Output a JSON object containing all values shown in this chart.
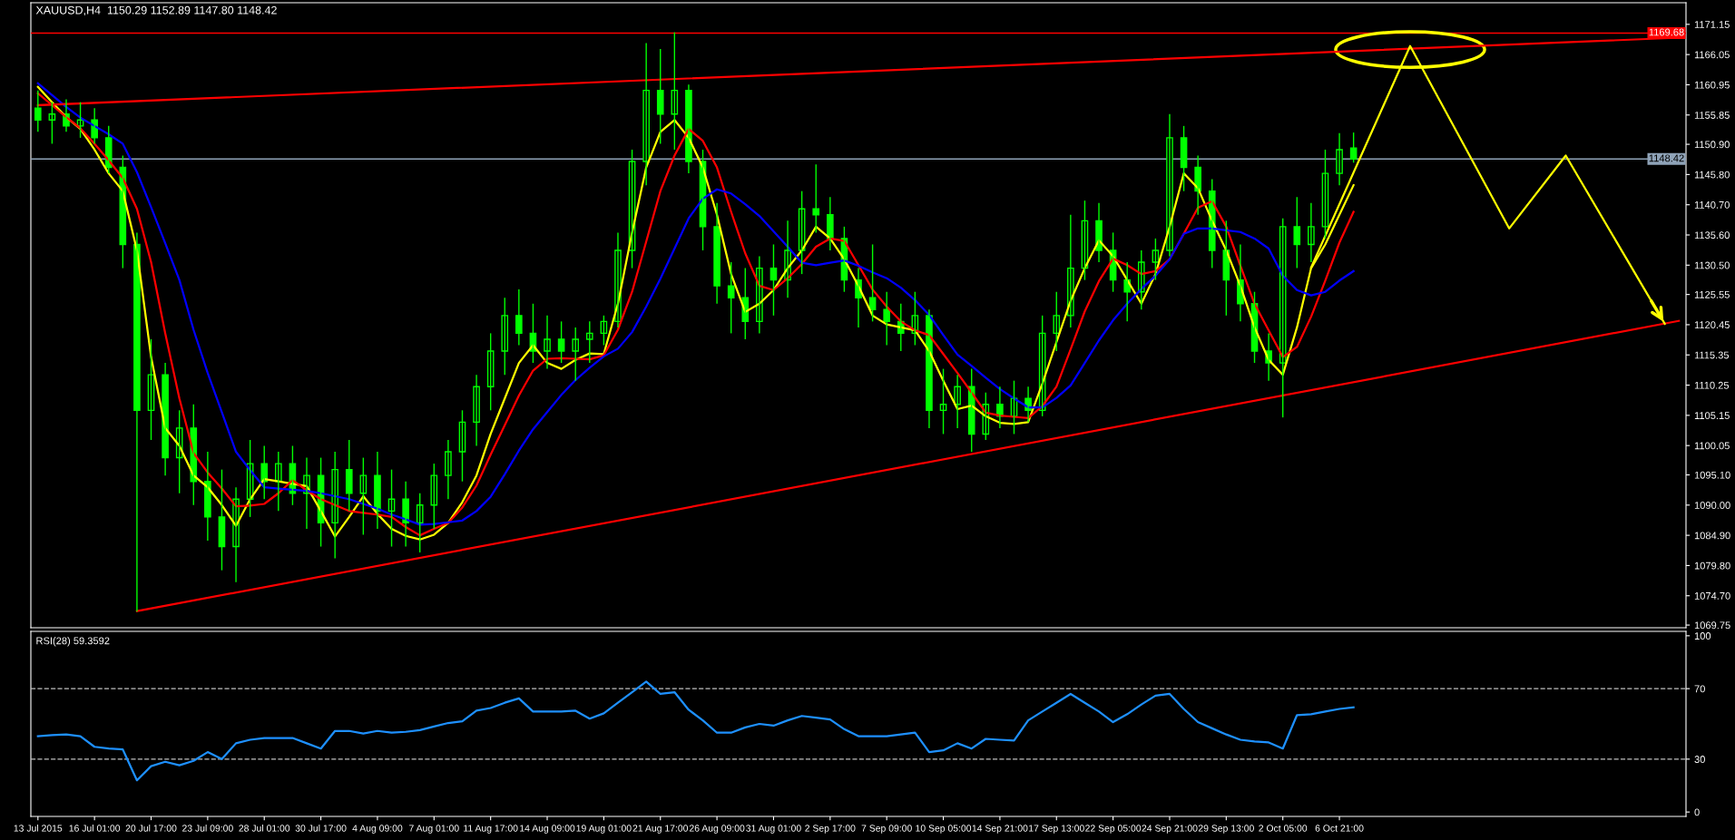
{
  "chart_data": [
    {
      "type": "candlestick",
      "title": "XAUUSD,H4  1150.29 1152.89 1147.80 1148.42",
      "color": "#00ff00",
      "categories": [
        null,
        null,
        null,
        null,
        null,
        null,
        null,
        null,
        null,
        null,
        null,
        null,
        null,
        null,
        null,
        null,
        null,
        null,
        null,
        null,
        null,
        null,
        null,
        null,
        null,
        null,
        null,
        null,
        null,
        null,
        null,
        null,
        null,
        null,
        null,
        null,
        null,
        null,
        null,
        null,
        null,
        null,
        null,
        null,
        null,
        null,
        null,
        null,
        null,
        null,
        null,
        null,
        null,
        null,
        null,
        null,
        null,
        null,
        null,
        null,
        null,
        null,
        null,
        null,
        null,
        null,
        null,
        null,
        null,
        null,
        null,
        null,
        null,
        null,
        null,
        null,
        null,
        null,
        null,
        null,
        null,
        null,
        null,
        null,
        null,
        null,
        null,
        null,
        null,
        null,
        null,
        null,
        null,
        null,
        null,
        null,
        null,
        null,
        null,
        null,
        null,
        null,
        null,
        null,
        null,
        null,
        null,
        null,
        null,
        null,
        null,
        null,
        null,
        null,
        null,
        null,
        null
      ],
      "ohlc": [
        [
          1157,
          1160,
          1153,
          1155
        ],
        [
          1155,
          1158,
          1151,
          1156
        ],
        [
          1156,
          1158.5,
          1153,
          1154
        ],
        [
          1154,
          1158,
          1152,
          1155
        ],
        [
          1155,
          1157,
          1151,
          1152
        ],
        [
          1152,
          1154,
          1146,
          1147
        ],
        [
          1147,
          1149,
          1130,
          1134
        ],
        [
          1134,
          1136,
          1072,
          1106
        ],
        [
          1106,
          1118,
          1101,
          1112
        ],
        [
          1112,
          1114,
          1095,
          1098
        ],
        [
          1098,
          1106,
          1092,
          1103
        ],
        [
          1103,
          1107,
          1090,
          1094
        ],
        [
          1094,
          1099,
          1084,
          1088
        ],
        [
          1088,
          1096,
          1079,
          1083
        ],
        [
          1083,
          1093,
          1077,
          1091
        ],
        [
          1091,
          1101,
          1088,
          1097
        ],
        [
          1097,
          1100,
          1091,
          1094
        ],
        [
          1094,
          1099,
          1089,
          1097
        ],
        [
          1097,
          1100,
          1090,
          1092
        ],
        [
          1092,
          1098,
          1086,
          1095
        ],
        [
          1095,
          1098,
          1083,
          1087
        ],
        [
          1087,
          1099,
          1081,
          1096
        ],
        [
          1096,
          1101,
          1089,
          1092
        ],
        [
          1092,
          1098,
          1085,
          1095
        ],
        [
          1095,
          1099,
          1086,
          1089
        ],
        [
          1089,
          1096,
          1083,
          1091
        ],
        [
          1091,
          1094,
          1083,
          1087
        ],
        [
          1087,
          1092,
          1082,
          1090
        ],
        [
          1090,
          1097,
          1086,
          1095
        ],
        [
          1095,
          1101,
          1091,
          1099
        ],
        [
          1099,
          1106,
          1094,
          1104
        ],
        [
          1104,
          1112,
          1100,
          1110
        ],
        [
          1110,
          1119,
          1106,
          1116
        ],
        [
          1116,
          1125,
          1112,
          1122
        ],
        [
          1122,
          1126.4,
          1117,
          1119
        ],
        [
          1119,
          1124,
          1114,
          1116
        ],
        [
          1116,
          1122,
          1113,
          1118
        ],
        [
          1118,
          1121,
          1114,
          1116
        ],
        [
          1116,
          1120,
          1111,
          1118
        ],
        [
          1118,
          1121,
          1114,
          1119
        ],
        [
          1119,
          1122,
          1117,
          1121
        ],
        [
          1121,
          1136,
          1120,
          1133
        ],
        [
          1133,
          1150,
          1130,
          1148
        ],
        [
          1148,
          1168,
          1144,
          1160
        ],
        [
          1160,
          1167,
          1151,
          1156
        ],
        [
          1156,
          1169.8,
          1150,
          1160
        ],
        [
          1160,
          1161,
          1146,
          1148
        ],
        [
          1148,
          1150,
          1133,
          1137
        ],
        [
          1137,
          1141,
          1124,
          1127
        ],
        [
          1127,
          1131,
          1119,
          1125
        ],
        [
          1125,
          1130,
          1118,
          1121
        ],
        [
          1121,
          1132,
          1119,
          1130
        ],
        [
          1130,
          1134,
          1122,
          1128
        ],
        [
          1128,
          1138,
          1125,
          1133
        ],
        [
          1133,
          1143,
          1129,
          1140
        ],
        [
          1140,
          1147.5,
          1136,
          1139
        ],
        [
          1139,
          1142,
          1133,
          1135
        ],
        [
          1135,
          1137,
          1126,
          1128
        ],
        [
          1128,
          1130,
          1120,
          1125
        ],
        [
          1125,
          1134,
          1121,
          1123
        ],
        [
          1123,
          1126,
          1117,
          1121
        ],
        [
          1121,
          1124,
          1116,
          1119
        ],
        [
          1119,
          1126,
          1117,
          1122
        ],
        [
          1122,
          1123,
          1103,
          1106
        ],
        [
          1106,
          1113,
          1102,
          1107
        ],
        [
          1107,
          1112,
          1103,
          1110
        ],
        [
          1110,
          1113,
          1099,
          1102
        ],
        [
          1102,
          1109,
          1101,
          1107
        ],
        [
          1107,
          1110,
          1103,
          1105
        ],
        [
          1105,
          1111,
          1102,
          1108
        ],
        [
          1108,
          1110,
          1104,
          1106
        ],
        [
          1106,
          1122,
          1105,
          1119
        ],
        [
          1119,
          1126,
          1116,
          1122
        ],
        [
          1122,
          1139,
          1120,
          1130
        ],
        [
          1130,
          1141.4,
          1128,
          1138
        ],
        [
          1138,
          1141,
          1131,
          1133
        ],
        [
          1133,
          1136,
          1126,
          1128
        ],
        [
          1128,
          1131,
          1121,
          1126
        ],
        [
          1126,
          1133,
          1123,
          1131
        ],
        [
          1131,
          1135,
          1128,
          1133
        ],
        [
          1133,
          1156,
          1132,
          1152
        ],
        [
          1152,
          1154,
          1143,
          1147
        ],
        [
          1147,
          1149,
          1139,
          1143
        ],
        [
          1143,
          1145,
          1130,
          1133
        ],
        [
          1133,
          1138,
          1122,
          1128
        ],
        [
          1128,
          1134,
          1121,
          1124
        ],
        [
          1124,
          1126,
          1114,
          1116
        ],
        [
          1116,
          1119,
          1111,
          1114
        ],
        [
          1114,
          1138.4,
          1104.8,
          1137
        ],
        [
          1137,
          1142,
          1130,
          1134
        ],
        [
          1134,
          1141,
          1131,
          1137
        ],
        [
          1137,
          1150,
          1135,
          1146
        ],
        [
          1146,
          1152.8,
          1144,
          1150
        ],
        [
          1150.29,
          1152.89,
          1147.8,
          1148.42
        ],
        null,
        null,
        null,
        null,
        null,
        null,
        null,
        null,
        null,
        null,
        null,
        null,
        null,
        null,
        null,
        null,
        null,
        null,
        null,
        null,
        null,
        null,
        null
      ],
      "series": [
        {
          "type": "line",
          "color": "#ffff00",
          "values": [
            1160.6,
            1158,
            1155.5,
            1153.5,
            1150,
            1146,
            1143,
            1133,
            1115,
            1103,
            1100,
            1095,
            1093,
            1090,
            1086.5,
            1091,
            1094.4,
            1094,
            1093.6,
            1093.2,
            1089,
            1084.7,
            1088,
            1091.5,
            1088.5,
            1086,
            1084.8,
            1084.2,
            1085,
            1087,
            1090.5,
            1095,
            1102,
            1108,
            1114,
            1117,
            1114,
            1113,
            1114.5,
            1115.6,
            1115.5,
            1124,
            1136,
            1147,
            1153,
            1155,
            1152,
            1147,
            1139,
            1129,
            1122.6,
            1124,
            1126.3,
            1130,
            1133,
            1137,
            1135,
            1131.5,
            1127,
            1122,
            1120.5,
            1120,
            1119.5,
            1116,
            1111,
            1106.2,
            1106.8,
            1105,
            1103.9,
            1103.7,
            1104,
            1110.5,
            1117.5,
            1124.5,
            1130,
            1134.7,
            1132,
            1128,
            1124,
            1129,
            1137,
            1146,
            1143.5,
            1138,
            1133,
            1127,
            1120,
            1114.5,
            1112,
            1120,
            1130,
            1134,
            1139,
            1144,
            null,
            null,
            null,
            null,
            null,
            null,
            null,
            null,
            null,
            null,
            null,
            null,
            null,
            null,
            null,
            null,
            null,
            null,
            null,
            null,
            null,
            null,
            null
          ]
        },
        {
          "type": "line",
          "color": "#ff0000",
          "values": [
            1159.5,
            1157.5,
            1155.5,
            1153.6,
            1151,
            1148.2,
            1145.2,
            1140,
            1131,
            1119,
            1108,
            1098.8,
            1095.5,
            1092.8,
            1089.8,
            1089.9,
            1090.2,
            1092,
            1094.2,
            1092.5,
            1091,
            1090,
            1089,
            1088.7,
            1088.4,
            1088,
            1086.3,
            1084.9,
            1086,
            1087,
            1089.6,
            1093.3,
            1098.5,
            1103.5,
            1108.5,
            1112.7,
            1114.7,
            1114.8,
            1114.7,
            1114.6,
            1115.3,
            1119.6,
            1126,
            1134.5,
            1143,
            1149,
            1153.5,
            1151.5,
            1147,
            1139.5,
            1132.5,
            1127,
            1126.3,
            1128.3,
            1130.7,
            1133.6,
            1135,
            1134.6,
            1130.5,
            1126.4,
            1123.5,
            1121,
            1119.5,
            1118.7,
            1115.5,
            1112.3,
            1109,
            1105.6,
            1105.1,
            1104.9,
            1104.7,
            1106.7,
            1110,
            1116.3,
            1122.7,
            1127.8,
            1131.6,
            1130.5,
            1129,
            1129.5,
            1131.5,
            1135.8,
            1140.2,
            1141.3,
            1137,
            1130.4,
            1124,
            1119.5,
            1115,
            1116.7,
            1121.8,
            1127.9,
            1134.3,
            1139.5,
            null,
            null,
            null,
            null,
            null,
            null,
            null,
            null,
            null,
            null,
            null,
            null,
            null,
            null,
            null,
            null,
            null,
            null,
            null,
            null,
            null,
            null,
            null
          ]
        },
        {
          "type": "line",
          "color": "#0000ff",
          "values": [
            1161.2,
            1159.2,
            1157.2,
            1155.4,
            1154,
            1152.6,
            1151,
            1146.2,
            1140.3,
            1134.2,
            1128,
            1119.6,
            1112.3,
            1105.7,
            1099,
            1095.9,
            1093,
            1092.8,
            1092.6,
            1092.4,
            1092,
            1091.5,
            1091,
            1090.2,
            1089.4,
            1088.4,
            1087.6,
            1086.7,
            1086.8,
            1087.1,
            1087.4,
            1089,
            1091.4,
            1095.2,
            1099.2,
            1102.8,
            1105.7,
            1108.6,
            1111.1,
            1113.2,
            1115.1,
            1116.4,
            1119.2,
            1123.5,
            1128.2,
            1133.3,
            1138.4,
            1141.7,
            1143.3,
            1142.6,
            1140.8,
            1138.8,
            1136.2,
            1133.6,
            1130.9,
            1130.5,
            1130.9,
            1131.3,
            1130.4,
            1129.3,
            1128.3,
            1126.7,
            1124.6,
            1122.1,
            1118.7,
            1115.4,
            1113.5,
            1111.5,
            1109.6,
            1108,
            1106.5,
            1106.5,
            1108.1,
            1110.2,
            1114,
            1117.8,
            1121.2,
            1124,
            1126.5,
            1128.7,
            1131.5,
            1135.8,
            1136.7,
            1136.7,
            1136.4,
            1136.1,
            1135,
            1133.3,
            1128.7,
            1126.3,
            1125.4,
            1126,
            1127.9,
            1129.5,
            null,
            null,
            null,
            null,
            null,
            null,
            null,
            null,
            null,
            null,
            null,
            null,
            null,
            null,
            null,
            null,
            null,
            null,
            null,
            null,
            null,
            null,
            null
          ]
        },
        {
          "type": "line",
          "color": "#ff0000",
          "values": [
            1157.5,
            null,
            null,
            null,
            null,
            null,
            null,
            null,
            null,
            null,
            null,
            null,
            null,
            null,
            null,
            null,
            null,
            null,
            null,
            null,
            null,
            null,
            null,
            null,
            null,
            null,
            null,
            null,
            null,
            null,
            null,
            null,
            null,
            null,
            null,
            null,
            null,
            null,
            null,
            null,
            null,
            null,
            null,
            null,
            null,
            null,
            null,
            null,
            null,
            null,
            null,
            null,
            null,
            null,
            null,
            null,
            null,
            null,
            null,
            null,
            null,
            null,
            null,
            null,
            null,
            null,
            null,
            null,
            null,
            null,
            null,
            null,
            null,
            null,
            null,
            null,
            null,
            null,
            null,
            null,
            null,
            null,
            null,
            null,
            null,
            null,
            null,
            null,
            null,
            null,
            null,
            null,
            null,
            null,
            null,
            null,
            null,
            null,
            null,
            null,
            null,
            null,
            null,
            null,
            null,
            null,
            null,
            null,
            null,
            null,
            null,
            null,
            null,
            null,
            null,
            null,
            1168.9
          ]
        },
        {
          "type": "line",
          "color": "#ff0000",
          "values": [
            null,
            null,
            null,
            null,
            null,
            null,
            null,
            1072.1,
            null,
            null,
            null,
            null,
            null,
            null,
            null,
            null,
            null,
            null,
            null,
            null,
            null,
            null,
            null,
            null,
            null,
            null,
            null,
            null,
            null,
            null,
            null,
            null,
            null,
            null,
            null,
            null,
            null,
            null,
            null,
            null,
            null,
            null,
            null,
            null,
            null,
            null,
            null,
            null,
            null,
            null,
            null,
            null,
            null,
            null,
            null,
            null,
            null,
            null,
            null,
            null,
            null,
            null,
            null,
            null,
            null,
            null,
            null,
            null,
            null,
            null,
            null,
            null,
            null,
            null,
            null,
            null,
            null,
            null,
            null,
            null,
            null,
            null,
            null,
            null,
            null,
            null,
            null,
            null,
            null,
            null,
            null,
            null,
            null,
            null,
            null,
            null,
            null,
            null,
            null,
            null,
            null,
            null,
            null,
            null,
            null,
            null,
            null,
            null,
            null,
            null,
            null,
            null,
            null,
            null,
            null,
            null,
            1121.1
          ]
        },
        {
          "type": "line",
          "color": "#ffff00",
          "values": [
            null,
            null,
            null,
            null,
            null,
            null,
            null,
            null,
            null,
            null,
            null,
            null,
            null,
            null,
            null,
            null,
            null,
            null,
            null,
            null,
            null,
            null,
            null,
            null,
            null,
            null,
            null,
            null,
            null,
            null,
            null,
            null,
            null,
            null,
            null,
            null,
            null,
            null,
            null,
            null,
            null,
            null,
            null,
            null,
            null,
            null,
            null,
            null,
            null,
            null,
            null,
            null,
            null,
            null,
            null,
            null,
            null,
            null,
            null,
            null,
            null,
            null,
            null,
            null,
            null,
            null,
            null,
            null,
            null,
            null,
            null,
            null,
            null,
            null,
            null,
            null,
            null,
            null,
            null,
            null,
            null,
            null,
            null,
            null,
            null,
            null,
            null,
            null,
            null,
            null,
            1130.1,
            null,
            null,
            null,
            null,
            null,
            null,
            1167.5,
            null,
            null,
            null,
            null,
            null,
            null,
            1136.7,
            null,
            null,
            null,
            1149.0,
            null,
            null,
            null,
            null,
            null,
            null,
            1120.6,
            null
          ]
        }
      ],
      "ref_lines": [
        {
          "axis": "y",
          "value": 1169.68,
          "label": "1169.68",
          "color": "#ff0000"
        },
        {
          "axis": "y",
          "value": 1148.42,
          "label": "1148.42",
          "color": "#8fa3b8"
        }
      ],
      "ylim": [
        1069.3,
        1174.8
      ],
      "yticks": [
        1171.15,
        1166.05,
        1160.95,
        1155.85,
        {
          "value": 1150.9,
          "label": "1150.90"
        },
        {
          "value": 1145.8,
          "label": "1145.80"
        },
        {
          "value": 1140.7,
          "label": "1140.70"
        },
        {
          "value": 1135.6,
          "label": "1135.60"
        },
        {
          "value": 1130.5,
          "label": "1130.50"
        },
        1125.55,
        1120.45,
        1115.35,
        1110.25,
        1105.15,
        1100.05,
        {
          "value": 1095.1,
          "label": "1095.10"
        },
        {
          "value": 1090.0,
          "label": "1090.00"
        },
        {
          "value": 1084.9,
          "label": "1084.90"
        },
        {
          "value": 1079.8,
          "label": "1079.80"
        },
        {
          "value": 1074.7,
          "label": "1074.70"
        },
        1069.75
      ],
      "tick_labels": "y",
      "grid": false,
      "legend": false
    },
    {
      "type": "line",
      "title": "RSI(28) 59.3592",
      "categories": [
        "13 Jul 2015",
        null,
        null,
        null,
        "16 Jul 01:00",
        null,
        null,
        null,
        "20 Jul 17:00",
        null,
        null,
        null,
        "23 Jul 09:00",
        null,
        null,
        null,
        "28 Jul 01:00",
        null,
        null,
        null,
        "30 Jul 17:00",
        null,
        null,
        null,
        "4 Aug 09:00",
        null,
        null,
        null,
        "7 Aug 01:00",
        null,
        null,
        null,
        "11 Aug 17:00",
        null,
        null,
        null,
        "14 Aug 09:00",
        null,
        null,
        null,
        "19 Aug 01:00",
        null,
        null,
        null,
        "21 Aug 17:00",
        null,
        null,
        null,
        "26 Aug 09:00",
        null,
        null,
        null,
        "31 Aug 01:00",
        null,
        null,
        null,
        "2 Sep 17:00",
        null,
        null,
        null,
        "7 Sep 09:00",
        null,
        null,
        null,
        "10 Sep 05:00",
        null,
        null,
        null,
        "14 Sep 21:00",
        null,
        null,
        null,
        "17 Sep 13:00",
        null,
        null,
        null,
        "22 Sep 05:00",
        null,
        null,
        null,
        "24 Sep 21:00",
        null,
        null,
        null,
        "29 Sep 13:00",
        null,
        null,
        null,
        "2 Oct 05:00",
        null,
        null,
        null,
        "6 Oct 21:00",
        null,
        null,
        null,
        null,
        null,
        null,
        null,
        null,
        null,
        null,
        null,
        null,
        null,
        null,
        null,
        null,
        null,
        null,
        null,
        null,
        null,
        null,
        null,
        null
      ],
      "series": [
        {
          "color": "#1e90ff",
          "values": [
            43,
            43.6,
            44,
            43,
            37,
            36,
            35.5,
            18,
            26,
            28.5,
            26.5,
            29,
            34,
            30,
            39,
            41,
            42,
            42,
            42,
            39,
            36,
            46,
            46,
            44.5,
            46,
            45,
            45.5,
            46.5,
            48.5,
            50.5,
            51.5,
            57.5,
            59,
            62,
            64.5,
            57,
            57,
            57,
            57.5,
            53,
            56,
            62,
            68,
            74,
            67,
            68,
            58,
            52,
            45,
            45,
            48,
            50,
            49,
            52,
            54.5,
            53.5,
            52.5,
            47,
            43,
            43,
            43,
            44,
            45,
            34,
            35,
            39,
            36,
            41.5,
            41,
            40.5,
            52,
            57,
            62,
            67,
            62,
            57,
            51,
            55.5,
            61,
            66,
            67,
            58.5,
            51,
            47.5,
            44,
            41,
            40,
            39.5,
            36,
            55,
            55.5,
            57,
            58.5,
            59.4,
            null,
            null,
            null,
            null,
            null,
            null,
            null,
            null,
            null,
            null,
            null,
            null,
            null,
            null,
            null,
            null,
            null,
            null,
            null,
            null,
            null,
            null,
            null
          ]
        }
      ],
      "ref_lines": [
        {
          "axis": "y",
          "value": 70,
          "color": "#c0c0c0",
          "line_style": "dashed"
        },
        {
          "axis": "y",
          "value": 30,
          "color": "#c0c0c0",
          "line_style": "dashed"
        }
      ],
      "ylim": [
        -2.5,
        102.5
      ],
      "yticks": [
        0,
        30,
        70,
        100
      ],
      "grid": false,
      "legend": false
    }
  ]
}
